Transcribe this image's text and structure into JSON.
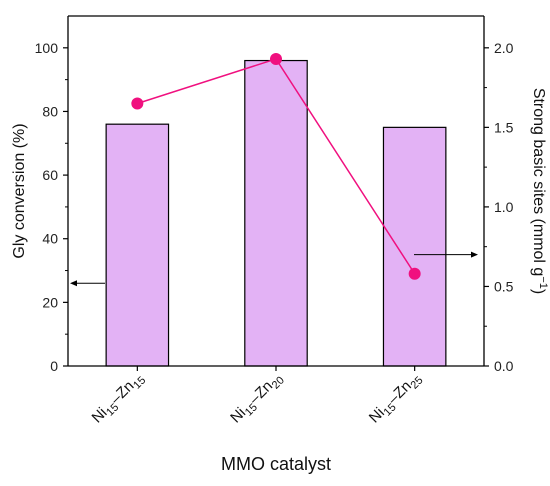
{
  "chart_data": {
    "type": "bar",
    "categories": [
      {
        "main1": "Ni",
        "sub1": "15",
        "main2": "Zn",
        "sub2": "15"
      },
      {
        "main1": "Ni",
        "sub1": "15",
        "main2": "Zn",
        "sub2": "20"
      },
      {
        "main1": "Ni",
        "sub1": "15",
        "main2": "Zn",
        "sub2": "25"
      }
    ],
    "series": [
      {
        "axis": "left",
        "kind": "bar",
        "values": [
          76,
          96,
          75
        ]
      },
      {
        "axis": "right",
        "kind": "line",
        "values": [
          1.65,
          1.93,
          0.58
        ]
      }
    ],
    "xlabel": "MMO catalyst",
    "ylabel_left": "Gly conversion (%)",
    "ylabel_right_base": "Strong basic sites (mmol g",
    "ylabel_right_sup": "−1",
    "ylabel_right_end": ")",
    "ylim_left": [
      0,
      110
    ],
    "ylim_right": [
      0,
      2.2
    ],
    "yticks_left": [
      0,
      20,
      40,
      60,
      80,
      100
    ],
    "yticks_right": [
      0.0,
      0.5,
      1.0,
      1.5,
      2.0
    ],
    "colors": {
      "bar_fill": "#E3B2F5",
      "bar_stroke": "#000000",
      "line": "#F0107F",
      "marker": "#F0107F",
      "axis": "#000000"
    }
  }
}
